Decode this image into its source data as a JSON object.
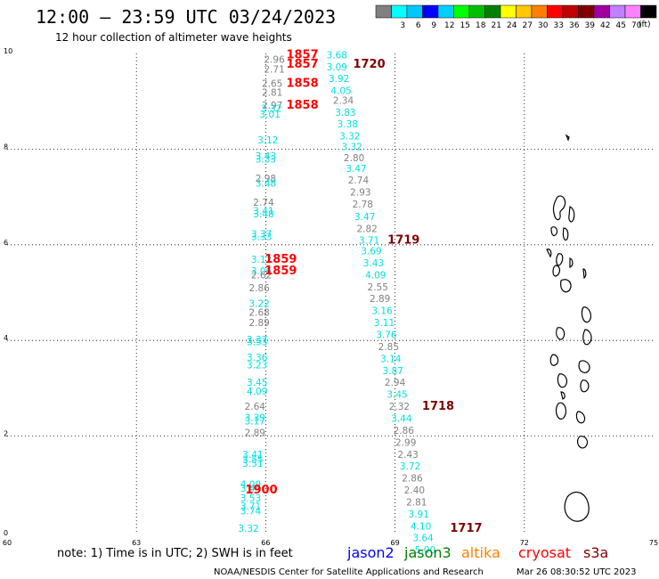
{
  "header": {
    "title": "12:00 — 23:59 UTC 03/24/2023",
    "subtitle": "12 hour collection of altimeter wave heights"
  },
  "legend": {
    "unit": "(ft)",
    "bins": [
      {
        "label": "",
        "color": "#808080"
      },
      {
        "label": "3",
        "color": "#00ffff"
      },
      {
        "label": "6",
        "color": "#00c8ff"
      },
      {
        "label": "9",
        "color": "#0000ff"
      },
      {
        "label": "12",
        "color": "#00d0ff"
      },
      {
        "label": "15",
        "color": "#00ff00"
      },
      {
        "label": "18",
        "color": "#00c000"
      },
      {
        "label": "21",
        "color": "#008000"
      },
      {
        "label": "24",
        "color": "#ffff00"
      },
      {
        "label": "27",
        "color": "#ffc800"
      },
      {
        "label": "30",
        "color": "#ff8000"
      },
      {
        "label": "33",
        "color": "#ff0000"
      },
      {
        "label": "36",
        "color": "#c00000"
      },
      {
        "label": "39",
        "color": "#800000"
      },
      {
        "label": "42",
        "color": "#a000a0"
      },
      {
        "label": "45",
        "color": "#c080ff"
      },
      {
        "label": "70",
        "color": "#ff80ff"
      },
      {
        "label": "",
        "color": "#000000"
      }
    ]
  },
  "footer": {
    "note": "note:  1) Time is in UTC;  2) SWH is in feet",
    "credit": "NOAA/NESDIS Center for Satellite Applications and Research",
    "timestamp": "Mar 26 08:30:52 UTC 2023",
    "satellites": [
      {
        "name": "jason2",
        "color": "#0000ff"
      },
      {
        "name": "jason3",
        "color": "#008000"
      },
      {
        "name": "altika",
        "color": "#ff8000"
      },
      {
        "name": "cryosat",
        "color": "#ff0000"
      },
      {
        "name": "s3a",
        "color": "#800000"
      }
    ]
  },
  "chart_data": {
    "type": "scatter",
    "xlim": [
      60,
      75
    ],
    "ylim": [
      0,
      10
    ],
    "xticks": [
      60,
      63,
      66,
      69,
      72,
      75
    ],
    "yticks": [
      0,
      2,
      4,
      6,
      8,
      10
    ],
    "grid": true,
    "colors": {
      "cyan": "#00e0e0",
      "gray": "#808080",
      "red": "#ff0000",
      "maroon": "#800000"
    },
    "points": [
      {
        "x": 66.2,
        "y": 9.8,
        "label": "2.96",
        "color": "gray"
      },
      {
        "x": 66.2,
        "y": 9.6,
        "label": "2.71",
        "color": "gray"
      },
      {
        "x": 66.15,
        "y": 9.3,
        "label": "2.65",
        "color": "gray"
      },
      {
        "x": 66.15,
        "y": 9.12,
        "label": "2.81",
        "color": "gray"
      },
      {
        "x": 66.15,
        "y": 8.85,
        "label": "2.97",
        "color": "gray"
      },
      {
        "x": 66.13,
        "y": 8.78,
        "label": "3.32",
        "color": "cyan"
      },
      {
        "x": 66.1,
        "y": 8.66,
        "label": "3.01",
        "color": "cyan"
      },
      {
        "x": 66.05,
        "y": 8.12,
        "label": "3.12",
        "color": "cyan"
      },
      {
        "x": 66.0,
        "y": 7.78,
        "label": "3.43",
        "color": "cyan"
      },
      {
        "x": 66.0,
        "y": 7.72,
        "label": "3.33",
        "color": "cyan"
      },
      {
        "x": 66.0,
        "y": 7.32,
        "label": "2.98",
        "color": "gray"
      },
      {
        "x": 66.0,
        "y": 7.22,
        "label": "3.48",
        "color": "cyan"
      },
      {
        "x": 65.95,
        "y": 6.82,
        "label": "2.74",
        "color": "gray"
      },
      {
        "x": 65.95,
        "y": 6.64,
        "label": "3.41",
        "color": "cyan"
      },
      {
        "x": 65.95,
        "y": 6.57,
        "label": "3.48",
        "color": "cyan"
      },
      {
        "x": 65.9,
        "y": 6.15,
        "label": "3.37",
        "color": "cyan"
      },
      {
        "x": 65.9,
        "y": 6.1,
        "label": "3.33",
        "color": "cyan"
      },
      {
        "x": 65.9,
        "y": 5.62,
        "label": "3.12",
        "color": "cyan"
      },
      {
        "x": 65.9,
        "y": 5.38,
        "label": "3.06",
        "color": "cyan"
      },
      {
        "x": 65.9,
        "y": 5.3,
        "label": "2.62",
        "color": "gray"
      },
      {
        "x": 65.85,
        "y": 5.03,
        "label": "2.86",
        "color": "gray"
      },
      {
        "x": 65.85,
        "y": 4.7,
        "label": "3.22",
        "color": "cyan"
      },
      {
        "x": 65.85,
        "y": 4.52,
        "label": "2.68",
        "color": "gray"
      },
      {
        "x": 65.85,
        "y": 4.3,
        "label": "2.89",
        "color": "gray"
      },
      {
        "x": 65.8,
        "y": 3.95,
        "label": "3.37",
        "color": "cyan"
      },
      {
        "x": 65.8,
        "y": 3.9,
        "label": "3.53",
        "color": "cyan"
      },
      {
        "x": 65.8,
        "y": 3.58,
        "label": "3.36",
        "color": "cyan"
      },
      {
        "x": 65.8,
        "y": 3.42,
        "label": "3.23",
        "color": "cyan"
      },
      {
        "x": 65.8,
        "y": 3.05,
        "label": "3.45",
        "color": "cyan"
      },
      {
        "x": 65.8,
        "y": 2.87,
        "label": "4.09",
        "color": "cyan"
      },
      {
        "x": 65.75,
        "y": 2.55,
        "label": "2.64",
        "color": "gray"
      },
      {
        "x": 65.75,
        "y": 2.32,
        "label": "3.39",
        "color": "cyan"
      },
      {
        "x": 65.75,
        "y": 2.24,
        "label": "3.17",
        "color": "cyan"
      },
      {
        "x": 65.75,
        "y": 2.0,
        "label": "2.89",
        "color": "gray"
      },
      {
        "x": 65.7,
        "y": 1.55,
        "label": "3.41",
        "color": "cyan"
      },
      {
        "x": 65.7,
        "y": 1.44,
        "label": "3.55",
        "color": "cyan"
      },
      {
        "x": 65.7,
        "y": 1.36,
        "label": "3.51",
        "color": "cyan"
      },
      {
        "x": 65.65,
        "y": 0.92,
        "label": "4.09",
        "color": "cyan"
      },
      {
        "x": 65.65,
        "y": 0.84,
        "label": "3.44",
        "color": "cyan"
      },
      {
        "x": 65.65,
        "y": 0.63,
        "label": "3.53",
        "color": "cyan"
      },
      {
        "x": 65.65,
        "y": 0.47,
        "label": "3.71",
        "color": "cyan"
      },
      {
        "x": 65.65,
        "y": 0.36,
        "label": "3.74",
        "color": "cyan"
      },
      {
        "x": 65.6,
        "y": 0.0,
        "label": "3.32",
        "color": "cyan"
      },
      {
        "x": 67.65,
        "y": 9.9,
        "label": "3.68",
        "color": "cyan"
      },
      {
        "x": 67.65,
        "y": 9.65,
        "label": "3.09",
        "color": "cyan"
      },
      {
        "x": 67.7,
        "y": 9.4,
        "label": "3.92",
        "color": "cyan"
      },
      {
        "x": 67.75,
        "y": 9.15,
        "label": "4.05",
        "color": "cyan"
      },
      {
        "x": 67.8,
        "y": 8.95,
        "label": "2.34",
        "color": "gray"
      },
      {
        "x": 67.85,
        "y": 8.7,
        "label": "3.83",
        "color": "cyan"
      },
      {
        "x": 67.9,
        "y": 8.45,
        "label": "3.38",
        "color": "cyan"
      },
      {
        "x": 67.95,
        "y": 8.2,
        "label": "3.32",
        "color": "cyan"
      },
      {
        "x": 68.0,
        "y": 7.98,
        "label": "3.32",
        "color": "cyan"
      },
      {
        "x": 68.05,
        "y": 7.75,
        "label": "2.80",
        "color": "gray"
      },
      {
        "x": 68.1,
        "y": 7.52,
        "label": "3.47",
        "color": "cyan"
      },
      {
        "x": 68.15,
        "y": 7.28,
        "label": "2.74",
        "color": "gray"
      },
      {
        "x": 68.2,
        "y": 7.03,
        "label": "2.93",
        "color": "gray"
      },
      {
        "x": 68.25,
        "y": 6.78,
        "label": "2.78",
        "color": "gray"
      },
      {
        "x": 68.3,
        "y": 6.52,
        "label": "3.47",
        "color": "cyan"
      },
      {
        "x": 68.35,
        "y": 6.27,
        "label": "2.82",
        "color": "gray"
      },
      {
        "x": 68.4,
        "y": 6.02,
        "label": "3.71",
        "color": "cyan"
      },
      {
        "x": 68.45,
        "y": 5.8,
        "label": "3.69",
        "color": "cyan"
      },
      {
        "x": 68.5,
        "y": 5.55,
        "label": "3.43",
        "color": "cyan"
      },
      {
        "x": 68.55,
        "y": 5.3,
        "label": "4.09",
        "color": "cyan"
      },
      {
        "x": 68.6,
        "y": 5.05,
        "label": "2.55",
        "color": "gray"
      },
      {
        "x": 68.65,
        "y": 4.8,
        "label": "2.89",
        "color": "gray"
      },
      {
        "x": 68.7,
        "y": 4.55,
        "label": "3.16",
        "color": "cyan"
      },
      {
        "x": 68.75,
        "y": 4.3,
        "label": "3.11",
        "color": "cyan"
      },
      {
        "x": 68.8,
        "y": 4.05,
        "label": "3.76",
        "color": "cyan"
      },
      {
        "x": 68.85,
        "y": 3.8,
        "label": "2.85",
        "color": "gray"
      },
      {
        "x": 68.9,
        "y": 3.55,
        "label": "3.14",
        "color": "cyan"
      },
      {
        "x": 68.95,
        "y": 3.3,
        "label": "3.87",
        "color": "cyan"
      },
      {
        "x": 69.0,
        "y": 3.05,
        "label": "2.94",
        "color": "gray"
      },
      {
        "x": 69.05,
        "y": 2.8,
        "label": "3.45",
        "color": "cyan"
      },
      {
        "x": 69.1,
        "y": 2.55,
        "label": "2.32",
        "color": "gray"
      },
      {
        "x": 69.15,
        "y": 2.3,
        "label": "3.44",
        "color": "cyan"
      },
      {
        "x": 69.2,
        "y": 2.05,
        "label": "2.86",
        "color": "gray"
      },
      {
        "x": 69.25,
        "y": 1.8,
        "label": "2.99",
        "color": "gray"
      },
      {
        "x": 69.3,
        "y": 1.55,
        "label": "2.43",
        "color": "gray"
      },
      {
        "x": 69.35,
        "y": 1.3,
        "label": "3.72",
        "color": "cyan"
      },
      {
        "x": 69.4,
        "y": 1.05,
        "label": "2.86",
        "color": "gray"
      },
      {
        "x": 69.45,
        "y": 0.8,
        "label": "2.40",
        "color": "gray"
      },
      {
        "x": 69.5,
        "y": 0.55,
        "label": "2.81",
        "color": "gray"
      },
      {
        "x": 69.55,
        "y": 0.3,
        "label": "3.91",
        "color": "cyan"
      },
      {
        "x": 69.6,
        "y": 0.05,
        "label": "4.10",
        "color": "cyan"
      },
      {
        "x": 69.65,
        "y": -0.2,
        "label": "3.64",
        "color": "cyan"
      },
      {
        "x": 69.7,
        "y": -0.45,
        "label": "5.00",
        "color": "cyan"
      }
    ],
    "times": [
      {
        "x": 66.85,
        "y": 9.9,
        "label": "1857",
        "color": "red"
      },
      {
        "x": 66.85,
        "y": 9.7,
        "label": "1857",
        "color": "red"
      },
      {
        "x": 66.85,
        "y": 9.3,
        "label": "1858",
        "color": "red"
      },
      {
        "x": 66.85,
        "y": 8.85,
        "label": "1858",
        "color": "red"
      },
      {
        "x": 66.35,
        "y": 5.62,
        "label": "1859",
        "color": "red"
      },
      {
        "x": 66.35,
        "y": 5.38,
        "label": "1859",
        "color": "red"
      },
      {
        "x": 65.9,
        "y": 0.8,
        "label": "1900",
        "color": "red"
      },
      {
        "x": 68.4,
        "y": 9.7,
        "label": "1720",
        "color": "maroon"
      },
      {
        "x": 69.2,
        "y": 6.02,
        "label": "1719",
        "color": "maroon"
      },
      {
        "x": 70.0,
        "y": 2.55,
        "label": "1718",
        "color": "maroon"
      },
      {
        "x": 70.65,
        "y": 0.0,
        "label": "1717",
        "color": "maroon"
      }
    ]
  }
}
